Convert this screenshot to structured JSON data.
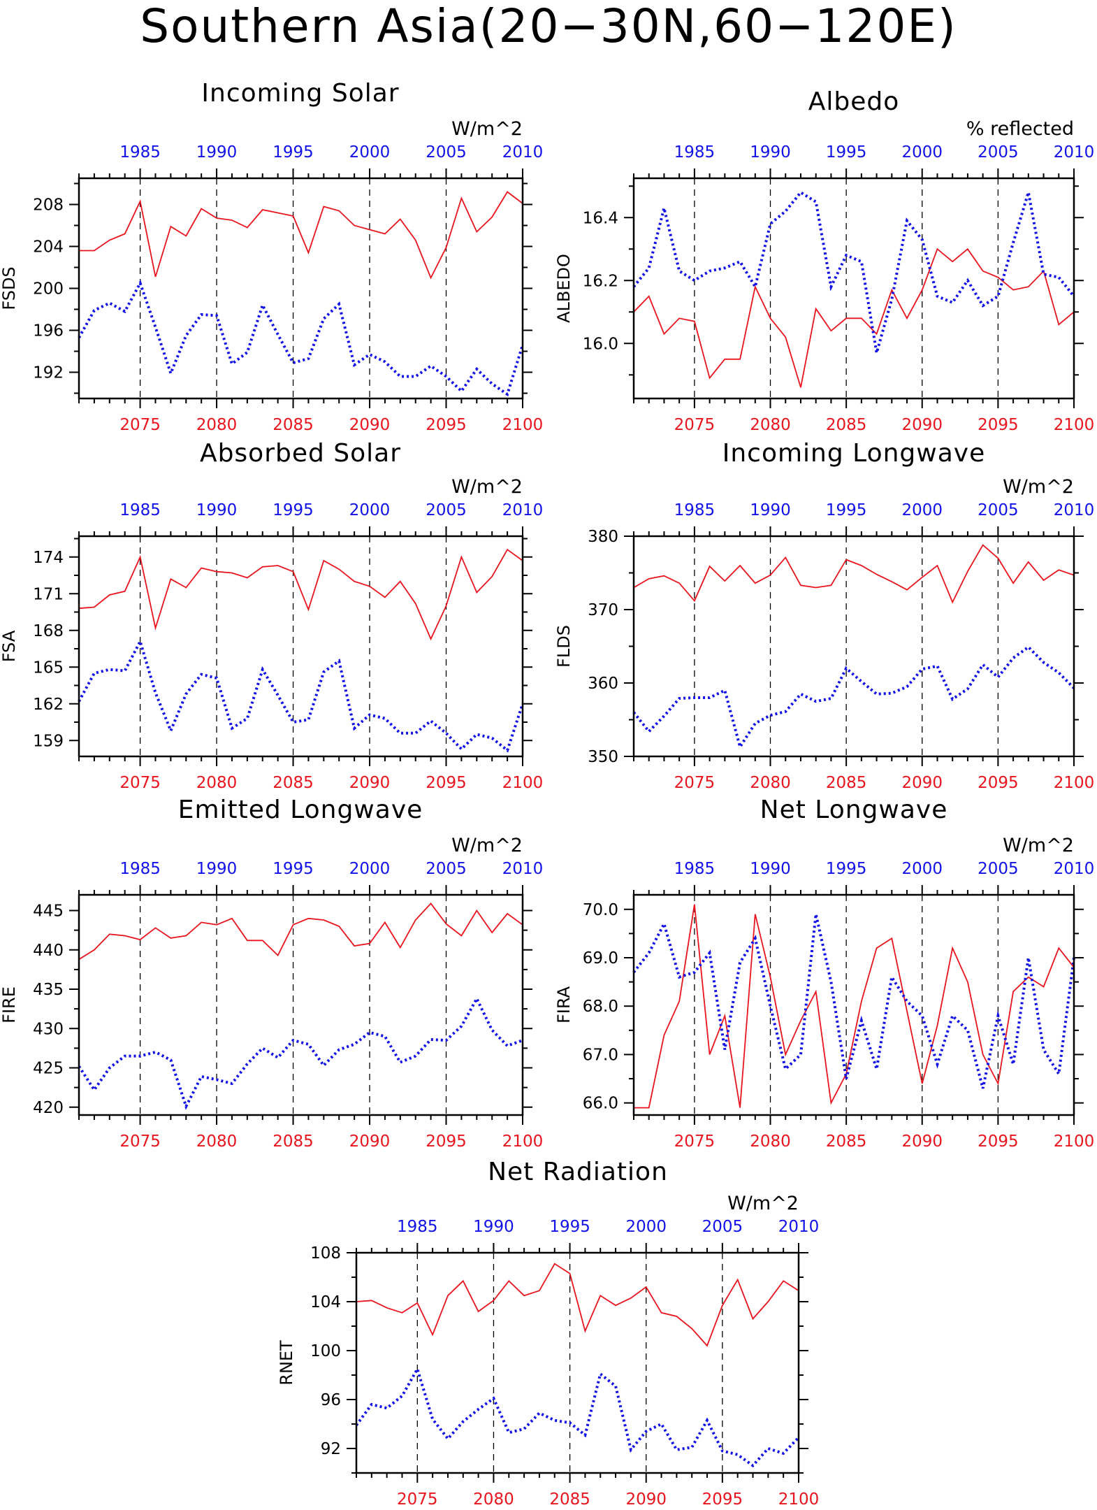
{
  "title": "Southern Asia(20−30N,60−120E)",
  "colors": {
    "series_red": "#e8141e",
    "series_blue": "#1212e8",
    "axis": "#000000"
  },
  "chart_data": [
    {
      "id": "fsds",
      "type": "line",
      "title": "Incoming Solar",
      "unit": "W/m^2",
      "ylabel": "FSDS",
      "xlim": [
        2071,
        2100
      ],
      "ylim": [
        189.5,
        210.5
      ],
      "yticks": [
        "208",
        "204",
        "200",
        "196",
        "192"
      ],
      "ytick_values": [
        208,
        204,
        200,
        196,
        192
      ],
      "x_bottom_ticks": [
        "2075",
        "2080",
        "2085",
        "2090",
        "2095",
        "2100"
      ],
      "x_top_ticks": [
        "1985",
        "1990",
        "1995",
        "2000",
        "2005",
        "2010"
      ],
      "x": [
        2071,
        2072,
        2073,
        2074,
        2075,
        2076,
        2077,
        2078,
        2079,
        2080,
        2081,
        2082,
        2083,
        2084,
        2085,
        2086,
        2087,
        2088,
        2089,
        2090,
        2091,
        2092,
        2093,
        2094,
        2095,
        2096,
        2097,
        2098,
        2099,
        2100
      ],
      "series": [
        {
          "style": "solid",
          "values": [
            203.6,
            203.6,
            204.6,
            205.2,
            208.3,
            201.1,
            205.9,
            205.0,
            207.6,
            206.7,
            206.5,
            205.8,
            207.5,
            207.2,
            206.9,
            203.4,
            207.8,
            207.4,
            206.0,
            205.6,
            205.2,
            206.6,
            204.6,
            201.0,
            203.9,
            208.6,
            205.4,
            206.8,
            209.2,
            208.1
          ]
        },
        {
          "style": "dotted",
          "values": [
            195.3,
            197.9,
            198.6,
            197.8,
            200.5,
            196.3,
            191.9,
            195.5,
            197.5,
            197.4,
            192.8,
            193.9,
            198.4,
            195.6,
            192.9,
            193.3,
            197.1,
            198.5,
            192.7,
            193.7,
            193.0,
            191.6,
            191.6,
            192.6,
            191.6,
            190.2,
            192.3,
            190.9,
            189.9,
            194.6
          ]
        }
      ]
    },
    {
      "id": "albedo",
      "type": "line",
      "title": "Albedo",
      "unit": "% reflected",
      "ylabel": "ALBEDO",
      "xlim": [
        2071,
        2100
      ],
      "ylim": [
        15.825,
        16.525
      ],
      "yticks": [
        "16.4",
        "16.2",
        "16.0"
      ],
      "ytick_values": [
        16.4,
        16.2,
        16.0
      ],
      "x_bottom_ticks": [
        "2075",
        "2080",
        "2085",
        "2090",
        "2095",
        "2100"
      ],
      "x_top_ticks": [
        "1985",
        "1990",
        "1995",
        "2000",
        "2005",
        "2010"
      ],
      "x": [
        2071,
        2072,
        2073,
        2074,
        2075,
        2076,
        2077,
        2078,
        2079,
        2080,
        2081,
        2082,
        2083,
        2084,
        2085,
        2086,
        2087,
        2088,
        2089,
        2090,
        2091,
        2092,
        2093,
        2094,
        2095,
        2096,
        2097,
        2098,
        2099,
        2100
      ],
      "series": [
        {
          "style": "solid",
          "values": [
            16.1,
            16.15,
            16.03,
            16.08,
            16.07,
            15.89,
            15.95,
            15.95,
            16.18,
            16.08,
            16.02,
            15.86,
            16.11,
            16.04,
            16.08,
            16.08,
            16.03,
            16.17,
            16.08,
            16.17,
            16.3,
            16.26,
            16.3,
            16.23,
            16.21,
            16.17,
            16.18,
            16.23,
            16.06,
            16.1
          ]
        },
        {
          "style": "dotted",
          "values": [
            16.18,
            16.24,
            16.43,
            16.23,
            16.2,
            16.23,
            16.24,
            16.26,
            16.18,
            16.38,
            16.42,
            16.48,
            16.45,
            16.18,
            16.28,
            16.26,
            15.97,
            16.14,
            16.39,
            16.33,
            16.15,
            16.13,
            16.2,
            16.12,
            16.15,
            16.32,
            16.48,
            16.22,
            16.21,
            16.15
          ]
        }
      ]
    },
    {
      "id": "fsa",
      "type": "line",
      "title": "Absorbed Solar",
      "unit": "W/m^2",
      "ylabel": "FSA",
      "xlim": [
        2071,
        2100
      ],
      "ylim": [
        157.7,
        175.7
      ],
      "yticks": [
        "174",
        "171",
        "168",
        "165",
        "162",
        "159"
      ],
      "ytick_values": [
        174,
        171,
        168,
        165,
        162,
        159
      ],
      "x_bottom_ticks": [
        "2075",
        "2080",
        "2085",
        "2090",
        "2095",
        "2100"
      ],
      "x_top_ticks": [
        "1985",
        "1990",
        "1995",
        "2000",
        "2005",
        "2010"
      ],
      "x": [
        2071,
        2072,
        2073,
        2074,
        2075,
        2076,
        2077,
        2078,
        2079,
        2080,
        2081,
        2082,
        2083,
        2084,
        2085,
        2086,
        2087,
        2088,
        2089,
        2090,
        2091,
        2092,
        2093,
        2094,
        2095,
        2096,
        2097,
        2098,
        2099,
        2100
      ],
      "series": [
        {
          "style": "solid",
          "values": [
            169.8,
            169.9,
            170.9,
            171.2,
            174.0,
            168.2,
            172.2,
            171.5,
            173.1,
            172.8,
            172.7,
            172.3,
            173.2,
            173.3,
            172.8,
            169.7,
            173.7,
            173.0,
            172.0,
            171.6,
            170.7,
            172.0,
            170.2,
            167.3,
            170.0,
            174.0,
            171.1,
            172.4,
            174.6,
            173.7
          ]
        },
        {
          "style": "dotted",
          "values": [
            162.2,
            164.5,
            164.8,
            164.7,
            167.1,
            162.9,
            159.8,
            162.8,
            164.4,
            164.1,
            160.0,
            160.8,
            164.8,
            162.7,
            160.5,
            160.7,
            164.6,
            165.5,
            160.0,
            161.1,
            160.8,
            159.6,
            159.6,
            160.6,
            159.6,
            158.3,
            159.5,
            159.2,
            158.2,
            162.0
          ]
        }
      ]
    },
    {
      "id": "flds",
      "type": "line",
      "title": "Incoming Longwave",
      "unit": "W/m^2",
      "ylabel": "FLDS",
      "xlim": [
        2071,
        2100
      ],
      "ylim": [
        350,
        380
      ],
      "yticks": [
        "380",
        "370",
        "360",
        "350"
      ],
      "ytick_values": [
        380,
        370,
        360,
        350
      ],
      "x_bottom_ticks": [
        "2075",
        "2080",
        "2085",
        "2090",
        "2095",
        "2100"
      ],
      "x_top_ticks": [
        "1985",
        "1990",
        "1995",
        "2000",
        "2005",
        "2010"
      ],
      "x": [
        2071,
        2072,
        2073,
        2074,
        2075,
        2076,
        2077,
        2078,
        2079,
        2080,
        2081,
        2082,
        2083,
        2084,
        2085,
        2086,
        2087,
        2088,
        2089,
        2090,
        2091,
        2092,
        2093,
        2094,
        2095,
        2096,
        2097,
        2098,
        2099,
        2100
      ],
      "series": [
        {
          "style": "solid",
          "values": [
            373.0,
            374.2,
            374.6,
            373.6,
            371.2,
            375.9,
            373.9,
            376.0,
            373.6,
            374.7,
            377.1,
            373.3,
            373.0,
            373.3,
            376.8,
            376.0,
            374.8,
            373.8,
            372.7,
            374.4,
            376.0,
            371.0,
            375.2,
            378.8,
            377.0,
            373.6,
            376.5,
            374.0,
            375.4,
            374.7
          ]
        },
        {
          "style": "dotted",
          "values": [
            356.0,
            353.4,
            355.5,
            357.9,
            358.0,
            358.0,
            359.0,
            351.3,
            354.5,
            355.6,
            356.1,
            358.5,
            357.5,
            357.9,
            362.0,
            360.2,
            358.5,
            358.6,
            359.5,
            361.9,
            362.3,
            357.8,
            359.2,
            362.5,
            360.8,
            363.4,
            364.9,
            362.8,
            361.4,
            359.3
          ]
        }
      ]
    },
    {
      "id": "fire",
      "type": "line",
      "title": "Emitted Longwave",
      "unit": "W/m^2",
      "ylabel": "FIRE",
      "xlim": [
        2071,
        2100
      ],
      "ylim": [
        419,
        447
      ],
      "yticks": [
        "445",
        "440",
        "435",
        "430",
        "425",
        "420"
      ],
      "ytick_values": [
        445,
        440,
        435,
        430,
        425,
        420
      ],
      "x_bottom_ticks": [
        "2075",
        "2080",
        "2085",
        "2090",
        "2095",
        "2100"
      ],
      "x_top_ticks": [
        "1985",
        "1990",
        "1995",
        "2000",
        "2005",
        "2010"
      ],
      "x": [
        2071,
        2072,
        2073,
        2074,
        2075,
        2076,
        2077,
        2078,
        2079,
        2080,
        2081,
        2082,
        2083,
        2084,
        2085,
        2086,
        2087,
        2088,
        2089,
        2090,
        2091,
        2092,
        2093,
        2094,
        2095,
        2096,
        2097,
        2098,
        2099,
        2100
      ],
      "series": [
        {
          "style": "solid",
          "values": [
            438.8,
            440.0,
            442.0,
            441.8,
            441.3,
            442.8,
            441.5,
            441.8,
            443.5,
            443.2,
            444.0,
            441.2,
            441.2,
            439.3,
            443.2,
            444.0,
            443.8,
            443.0,
            440.5,
            440.8,
            443.5,
            440.3,
            443.8,
            445.9,
            443.3,
            441.8,
            445.0,
            442.2,
            444.6,
            443.2
          ]
        },
        {
          "style": "dotted",
          "values": [
            425.2,
            422.2,
            425.0,
            426.5,
            426.5,
            427.0,
            426.0,
            420.1,
            423.9,
            423.5,
            423.0,
            425.5,
            427.5,
            426.3,
            428.5,
            428.0,
            425.3,
            427.3,
            428.0,
            429.5,
            429.0,
            425.7,
            426.5,
            428.6,
            428.5,
            430.3,
            433.8,
            429.8,
            427.8,
            428.5
          ]
        }
      ]
    },
    {
      "id": "fira",
      "type": "line",
      "title": "Net Longwave",
      "unit": "W/m^2",
      "ylabel": "FIRA",
      "xlim": [
        2071,
        2100
      ],
      "ylim": [
        65.75,
        70.3
      ],
      "yticks": [
        "70.0",
        "69.0",
        "68.0",
        "67.0",
        "66.0"
      ],
      "ytick_values": [
        70.0,
        69.0,
        68.0,
        67.0,
        66.0
      ],
      "x_bottom_ticks": [
        "2075",
        "2080",
        "2085",
        "2090",
        "2095",
        "2100"
      ],
      "x_top_ticks": [
        "1985",
        "1990",
        "1995",
        "2000",
        "2005",
        "2010"
      ],
      "x": [
        2071,
        2072,
        2073,
        2074,
        2075,
        2076,
        2077,
        2078,
        2079,
        2080,
        2081,
        2082,
        2083,
        2084,
        2085,
        2086,
        2087,
        2088,
        2089,
        2090,
        2091,
        2092,
        2093,
        2094,
        2095,
        2096,
        2097,
        2098,
        2099,
        2100
      ],
      "series": [
        {
          "style": "solid",
          "values": [
            65.9,
            65.9,
            67.4,
            68.1,
            70.1,
            67.0,
            67.8,
            65.9,
            69.9,
            68.6,
            67.0,
            67.7,
            68.3,
            66.0,
            66.6,
            68.1,
            69.2,
            69.4,
            67.9,
            66.4,
            67.6,
            69.2,
            68.5,
            67.0,
            66.4,
            68.3,
            68.6,
            68.4,
            69.2,
            68.8
          ]
        },
        {
          "style": "dotted",
          "values": [
            68.7,
            69.1,
            69.7,
            68.6,
            68.7,
            69.1,
            67.1,
            68.9,
            69.4,
            68.0,
            66.7,
            67.0,
            69.9,
            68.5,
            66.5,
            67.7,
            66.7,
            68.6,
            68.1,
            67.8,
            66.8,
            67.8,
            67.5,
            66.3,
            67.8,
            66.8,
            69.0,
            67.1,
            66.6,
            69.0
          ]
        }
      ]
    },
    {
      "id": "rnet",
      "type": "line",
      "title": "Net Radiation",
      "unit": "W/m^2",
      "ylabel": "RNET",
      "xlim": [
        2071,
        2100
      ],
      "ylim": [
        90,
        108
      ],
      "yticks": [
        "108",
        "104",
        "100",
        "96",
        "92"
      ],
      "ytick_values": [
        108,
        104,
        100,
        96,
        92
      ],
      "x_bottom_ticks": [
        "2075",
        "2080",
        "2085",
        "2090",
        "2095",
        "2100"
      ],
      "x_top_ticks": [
        "1985",
        "1990",
        "1995",
        "2000",
        "2005",
        "2010"
      ],
      "x": [
        2071,
        2072,
        2073,
        2074,
        2075,
        2076,
        2077,
        2078,
        2079,
        2080,
        2081,
        2082,
        2083,
        2084,
        2085,
        2086,
        2087,
        2088,
        2089,
        2090,
        2091,
        2092,
        2093,
        2094,
        2095,
        2096,
        2097,
        2098,
        2099,
        2100
      ],
      "series": [
        {
          "style": "solid",
          "values": [
            104.0,
            104.1,
            103.5,
            103.1,
            103.9,
            101.3,
            104.5,
            105.7,
            103.2,
            104.1,
            105.7,
            104.5,
            104.9,
            107.1,
            106.3,
            101.6,
            104.5,
            103.7,
            104.3,
            105.2,
            103.1,
            102.8,
            101.8,
            100.4,
            103.7,
            105.8,
            102.6,
            104.0,
            105.7,
            104.9
          ]
        },
        {
          "style": "dotted",
          "values": [
            93.9,
            95.6,
            95.3,
            96.3,
            98.5,
            94.4,
            92.8,
            94.2,
            95.2,
            96.1,
            93.3,
            93.6,
            94.9,
            94.3,
            94.1,
            93.1,
            98.1,
            97.1,
            91.9,
            93.4,
            94.0,
            91.9,
            92.1,
            94.3,
            91.8,
            91.5,
            90.6,
            92.0,
            91.6,
            92.9
          ]
        }
      ]
    }
  ]
}
